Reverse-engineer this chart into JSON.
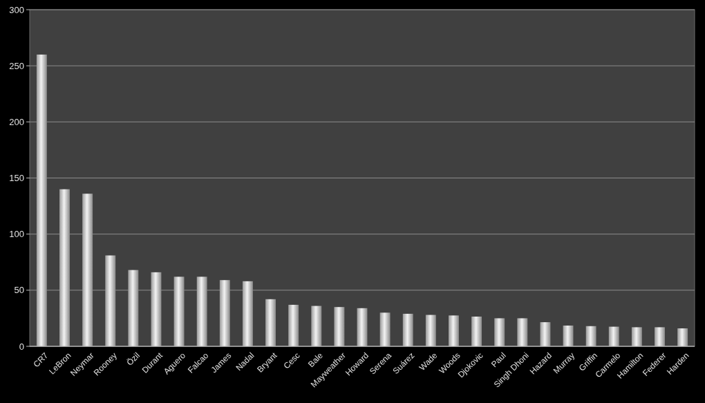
{
  "chart_data": {
    "type": "bar",
    "categories": [
      "CR7",
      "LeBron",
      "Neymar",
      "Rooney",
      "Özil",
      "Durant",
      "Aguero",
      "Falcao",
      "James",
      "Nadal",
      "Bryant",
      "Cesc",
      "Bale",
      "Mayweather",
      "Howard",
      "Serena",
      "Suárez",
      "Wade",
      "Woods",
      "Djokovic",
      "Paul",
      "Singh Dhoni",
      "Hazard",
      "Murray",
      "Griffin",
      "Carmelo",
      "Hamilton",
      "Federer",
      "Harden"
    ],
    "values": [
      260,
      140,
      136,
      81,
      68,
      66,
      62,
      62,
      59,
      58,
      42,
      37,
      36,
      35,
      34,
      30,
      29,
      28,
      27.5,
      26.5,
      25,
      25,
      21.5,
      18.5,
      18,
      17.5,
      17,
      17,
      16
    ],
    "color": "#f2f2f2",
    "ylim": [
      0,
      300
    ],
    "yticks": [
      0,
      50,
      100,
      150,
      200,
      250,
      300
    ],
    "grid": "y"
  }
}
